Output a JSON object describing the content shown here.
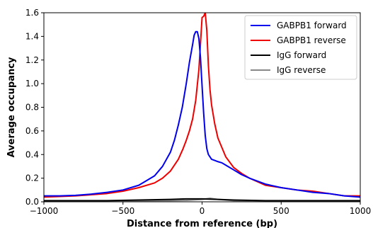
{
  "chart_data": {
    "type": "line",
    "title": "",
    "xlabel": "Distance from reference (bp)",
    "ylabel": "Average occupancy",
    "xlim": [
      -1000,
      1000
    ],
    "ylim": [
      0,
      1.6
    ],
    "xticks": [
      -1000,
      -500,
      0,
      500,
      1000
    ],
    "xtick_labels": [
      "−1000",
      "−500",
      "0",
      "500",
      "1000"
    ],
    "yticks": [
      0.0,
      0.2,
      0.4,
      0.6,
      0.8,
      1.0,
      1.2,
      1.4,
      1.6
    ],
    "ytick_labels": [
      "0.0",
      "0.2",
      "0.4",
      "0.6",
      "0.8",
      "1.0",
      "1.2",
      "1.4",
      "1.6"
    ],
    "grid": false,
    "legend_position": "top-right",
    "series": [
      {
        "name": "GABPB1 forward",
        "color": "#0000ee",
        "x": [
          -1000,
          -900,
          -800,
          -700,
          -600,
          -500,
          -400,
          -300,
          -250,
          -200,
          -175,
          -150,
          -125,
          -100,
          -80,
          -60,
          -50,
          -40,
          -30,
          -20,
          -10,
          0,
          10,
          20,
          30,
          40,
          50,
          60,
          80,
          100,
          125,
          150,
          200,
          250,
          300,
          400,
          500,
          600,
          700,
          800,
          900,
          1000
        ],
        "y": [
          0.05,
          0.05,
          0.055,
          0.065,
          0.08,
          0.1,
          0.14,
          0.22,
          0.3,
          0.42,
          0.52,
          0.65,
          0.8,
          1.0,
          1.18,
          1.33,
          1.41,
          1.44,
          1.44,
          1.38,
          1.22,
          0.98,
          0.75,
          0.56,
          0.45,
          0.4,
          0.38,
          0.36,
          0.35,
          0.34,
          0.33,
          0.31,
          0.27,
          0.23,
          0.2,
          0.15,
          0.12,
          0.1,
          0.08,
          0.07,
          0.05,
          0.04
        ]
      },
      {
        "name": "GABPB1 reverse",
        "color": "#ee0000",
        "x": [
          -1000,
          -900,
          -800,
          -700,
          -600,
          -500,
          -400,
          -300,
          -250,
          -200,
          -150,
          -120,
          -100,
          -80,
          -60,
          -40,
          -20,
          0,
          10,
          20,
          30,
          40,
          50,
          60,
          80,
          100,
          125,
          150,
          200,
          250,
          300,
          400,
          500,
          600,
          700,
          800,
          900,
          1000
        ],
        "y": [
          0.04,
          0.045,
          0.05,
          0.06,
          0.07,
          0.09,
          0.12,
          0.16,
          0.2,
          0.26,
          0.36,
          0.45,
          0.52,
          0.6,
          0.7,
          0.86,
          1.12,
          1.56,
          1.57,
          1.6,
          1.45,
          1.15,
          0.95,
          0.82,
          0.66,
          0.54,
          0.46,
          0.38,
          0.29,
          0.24,
          0.2,
          0.14,
          0.12,
          0.1,
          0.09,
          0.07,
          0.05,
          0.05
        ]
      },
      {
        "name": "IgG forward",
        "color": "#000000",
        "x": [
          -1000,
          -800,
          -600,
          -400,
          -200,
          -100,
          0,
          100,
          200,
          400,
          600,
          800,
          1000
        ],
        "y": [
          0.01,
          0.01,
          0.01,
          0.015,
          0.02,
          0.025,
          0.025,
          0.02,
          0.015,
          0.01,
          0.01,
          0.01,
          0.01
        ]
      },
      {
        "name": "IgG reverse",
        "color": "#888888",
        "x": [
          -1000,
          -800,
          -600,
          -400,
          -200,
          -100,
          0,
          50,
          100,
          200,
          400,
          600,
          800,
          1000
        ],
        "y": [
          0.005,
          0.005,
          0.005,
          0.008,
          0.01,
          0.012,
          0.02,
          0.03,
          0.02,
          0.01,
          0.008,
          0.005,
          0.005,
          0.005
        ]
      }
    ]
  }
}
